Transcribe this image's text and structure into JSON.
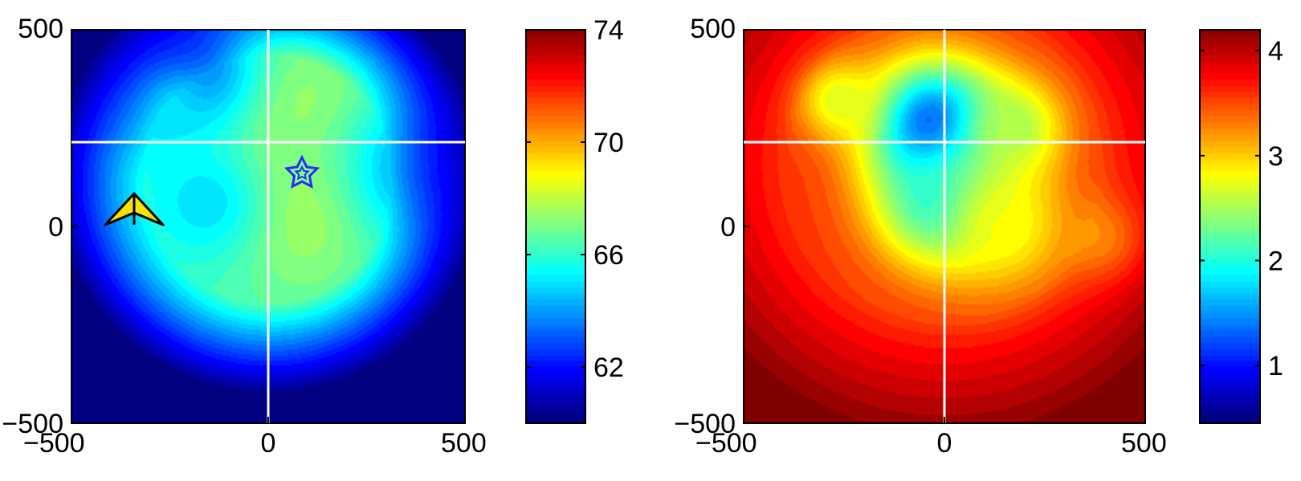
{
  "chart_data": [
    {
      "type": "heatmap",
      "title": "",
      "xlabel": "",
      "ylabel": "",
      "xlim": [
        -500,
        500
      ],
      "ylim": [
        -500,
        500
      ],
      "x_ticks": [
        "−500",
        "0",
        "500"
      ],
      "y_ticks": [
        "500",
        "0",
        "−500"
      ],
      "colormap": "jet",
      "colorbar": {
        "range": [
          60,
          74
        ],
        "ticks": [
          {
            "value": 74,
            "label": "74"
          },
          {
            "value": 70,
            "label": "70"
          },
          {
            "value": 66,
            "label": "66"
          },
          {
            "value": 62,
            "label": "62"
          }
        ]
      },
      "crosshair": {
        "x": 0,
        "y": 220
      },
      "markers": [
        {
          "name": "yellow-arrowhead",
          "x": -345,
          "y": 25,
          "color": "#f0e000"
        },
        {
          "name": "blue-star",
          "x": 75,
          "y": 145,
          "color": "#2a2aff"
        }
      ],
      "field_features": [
        {
          "x": 80,
          "y": 100,
          "value": 68.6,
          "spread": 170
        },
        {
          "x": 120,
          "y": 260,
          "value": 67.8,
          "spread": 150
        },
        {
          "x": -200,
          "y": 400,
          "value": 63.0,
          "spread": 110
        },
        {
          "x": -300,
          "y": 300,
          "value": 65.2,
          "spread": 110
        },
        {
          "x": -160,
          "y": 60,
          "value": 65.0,
          "spread": 120
        },
        {
          "x": 400,
          "y": 150,
          "value": 64.0,
          "spread": 150
        }
      ],
      "background_value": 66.3,
      "radial_falloff": {
        "center_x": 0,
        "center_y": 120,
        "radius": 420,
        "floor_value": 60.2
      }
    },
    {
      "type": "heatmap",
      "title": "",
      "xlabel": "",
      "ylabel": "",
      "xlim": [
        -500,
        500
      ],
      "ylim": [
        -500,
        500
      ],
      "x_ticks": [
        "−500",
        "0",
        "500"
      ],
      "y_ticks": [
        "500",
        "0",
        "−500"
      ],
      "colormap": "jet",
      "colorbar": {
        "range": [
          0.45,
          4.2
        ],
        "ticks": [
          {
            "value": 4,
            "label": "4"
          },
          {
            "value": 3,
            "label": "3"
          },
          {
            "value": 2,
            "label": "2"
          },
          {
            "value": 1,
            "label": "1"
          }
        ]
      },
      "crosshair": {
        "x": 0,
        "y": 220
      },
      "field_features": [
        {
          "x": -20,
          "y": 250,
          "value": 1.05,
          "spread": 120
        },
        {
          "x": 0,
          "y": 60,
          "value": 1.9,
          "spread": 120
        },
        {
          "x": -260,
          "y": 320,
          "value": 2.7,
          "spread": 70
        },
        {
          "x": 170,
          "y": 250,
          "value": 2.5,
          "spread": 90
        },
        {
          "x": 150,
          "y": 0,
          "value": 2.8,
          "spread": 110
        },
        {
          "x": 430,
          "y": -50,
          "value": 3.05,
          "spread": 80
        }
      ],
      "background_value": 3.6,
      "radial_falloff": {
        "center_x": 0,
        "center_y": 150,
        "radius": 520,
        "floor_value": 4.2
      }
    }
  ]
}
